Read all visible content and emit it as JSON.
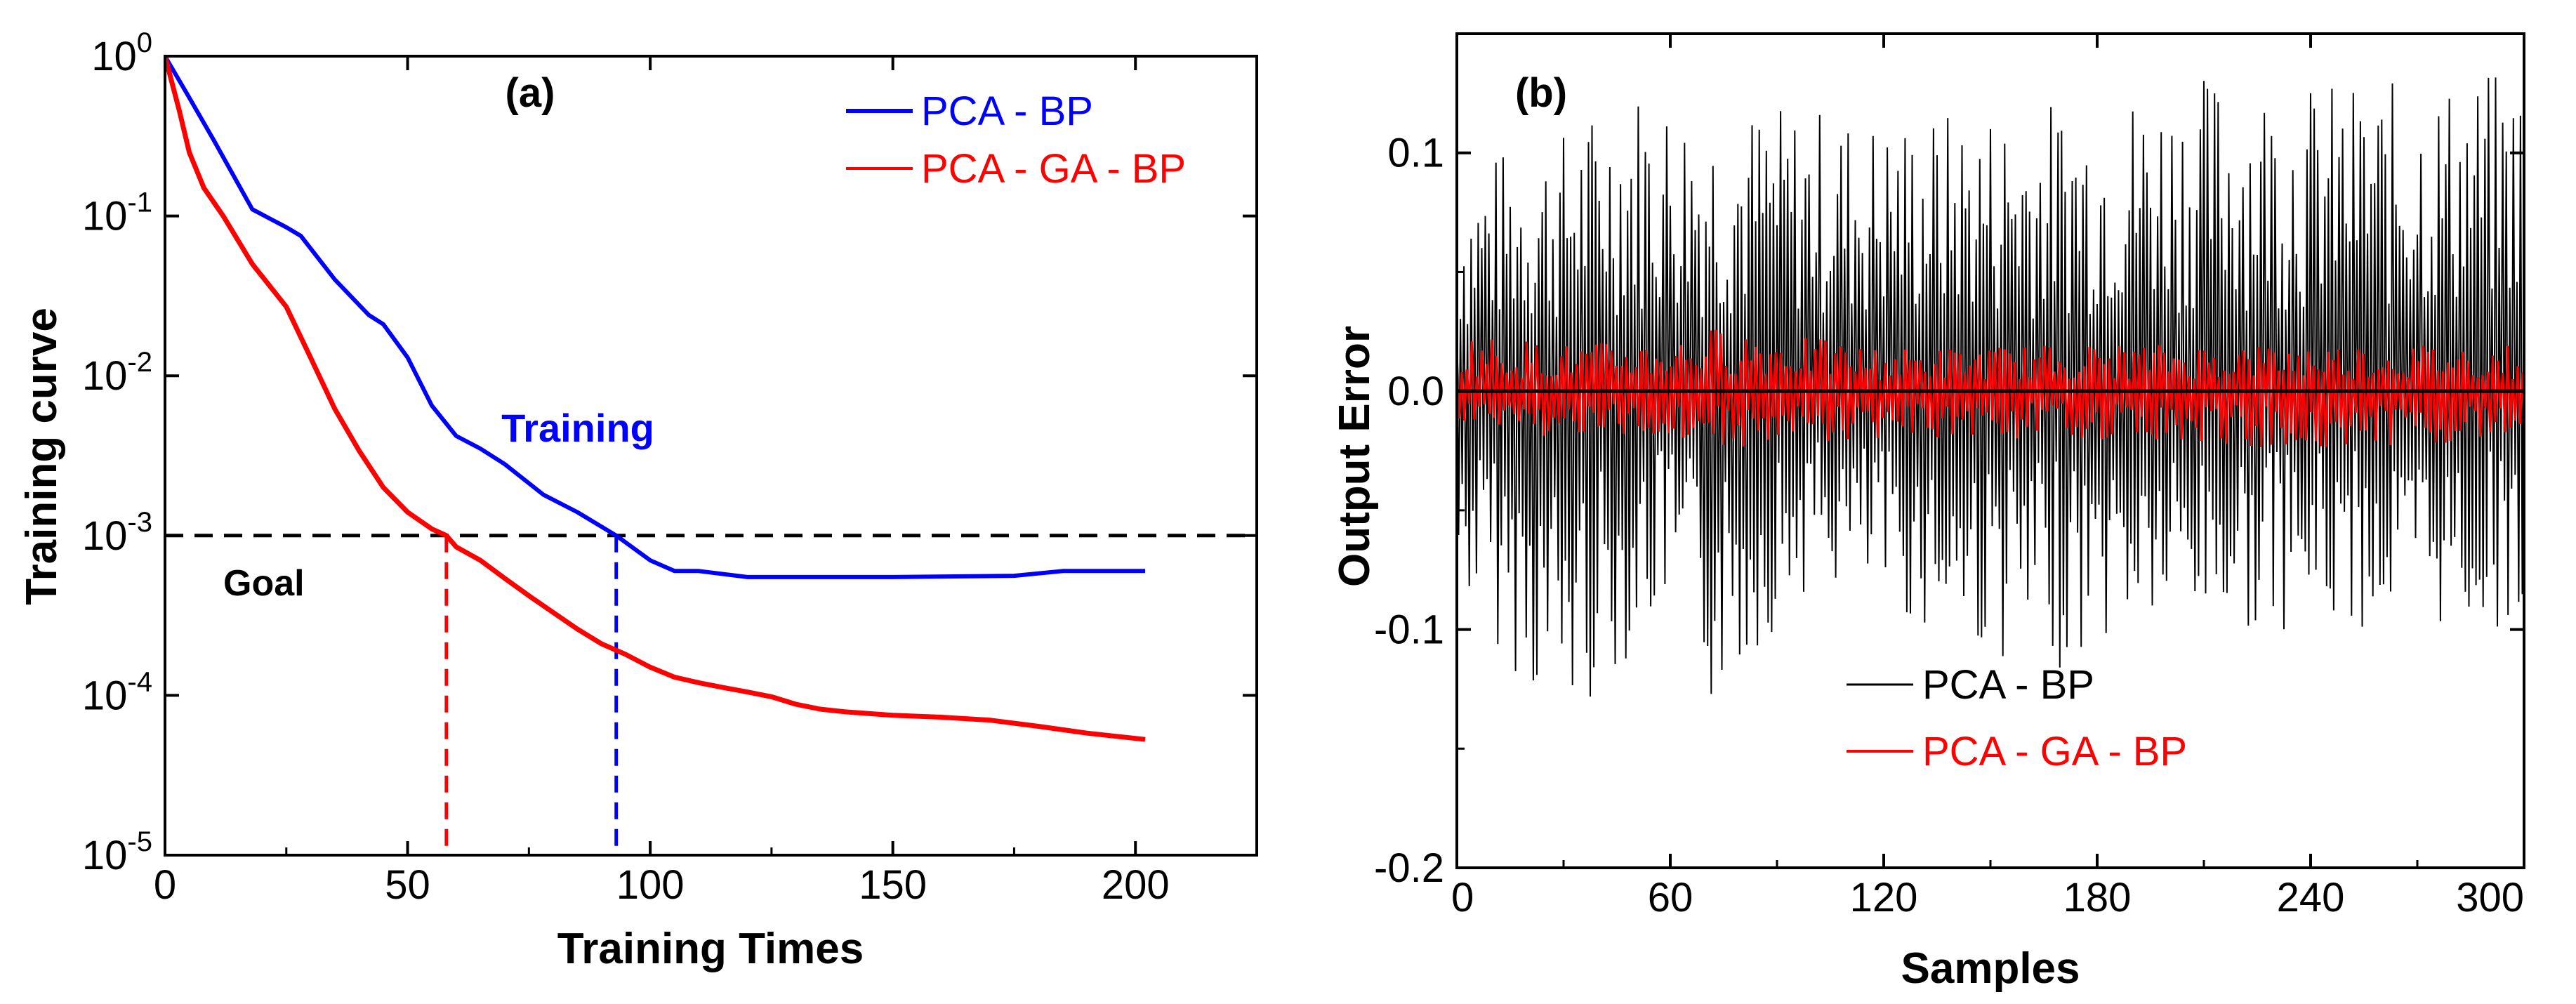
{
  "chart_data": [
    {
      "panel": "(a)",
      "type": "line",
      "xlabel": "Training Times",
      "ylabel": "Training curve",
      "xlim": [
        0,
        225
      ],
      "ylim": [
        1e-05,
        1
      ],
      "yscale": "log",
      "x_ticks": [
        0,
        50,
        100,
        150,
        200
      ],
      "x_tick_labels": [
        "0",
        "50",
        "100",
        "150",
        "200"
      ],
      "y_ticks": [
        1,
        0.1,
        0.01,
        0.001,
        0.0001,
        1e-05
      ],
      "y_tick_labels": [
        {
          "base": "10",
          "exp": "0"
        },
        {
          "base": "10",
          "exp": "-1"
        },
        {
          "base": "10",
          "exp": "-2"
        },
        {
          "base": "10",
          "exp": "-3"
        },
        {
          "base": "10",
          "exp": "-4"
        },
        {
          "base": "10",
          "exp": "-5"
        }
      ],
      "legend_position": "top-right",
      "series": [
        {
          "name": "PCA - BP",
          "color": "#0000ff",
          "x": [
            0,
            5,
            10,
            18,
            25,
            28,
            35,
            42,
            45,
            50,
            55,
            60,
            65,
            70,
            78,
            85,
            93,
            100,
            105,
            110,
            120,
            130,
            150,
            175,
            185,
            202
          ],
          "y": [
            1.0,
            0.55,
            0.3,
            0.11,
            0.085,
            0.075,
            0.04,
            0.024,
            0.021,
            0.013,
            0.0065,
            0.0042,
            0.0035,
            0.0028,
            0.0018,
            0.0014,
            0.001,
            0.0007,
            0.0006,
            0.0006,
            0.00055,
            0.00055,
            0.00055,
            0.00056,
            0.0006,
            0.0006
          ]
        },
        {
          "name": "PCA - GA - BP",
          "color": "#ff0000",
          "x": [
            0,
            3,
            5,
            8,
            12,
            18,
            25,
            30,
            35,
            40,
            45,
            50,
            55,
            58,
            60,
            65,
            70,
            75,
            80,
            85,
            90,
            95,
            100,
            105,
            110,
            115,
            120,
            125,
            130,
            135,
            140,
            150,
            160,
            170,
            180,
            190,
            202
          ],
          "y": [
            1.0,
            0.45,
            0.25,
            0.15,
            0.1,
            0.05,
            0.027,
            0.013,
            0.0062,
            0.0034,
            0.002,
            0.0014,
            0.0011,
            0.001,
            0.00085,
            0.0007,
            0.00054,
            0.00042,
            0.00033,
            0.00026,
            0.00021,
            0.00018,
            0.00015,
            0.00013,
            0.00012,
            0.000112,
            0.000105,
            9.8e-05,
            8.8e-05,
            8.2e-05,
            7.9e-05,
            7.5e-05,
            7.3e-05,
            7e-05,
            6.4e-05,
            5.8e-05,
            5.3e-05
          ]
        }
      ],
      "goal": {
        "value": 0.001,
        "label": "Goal",
        "color": "#000000"
      },
      "markers": [
        {
          "x": 58,
          "color": "#ff0000"
        },
        {
          "x": 93,
          "color": "#0000ff"
        }
      ],
      "annotations": [
        {
          "text": "Training",
          "x": 78,
          "y": 0.0035,
          "color": "#0000ff"
        }
      ]
    },
    {
      "panel": "(b)",
      "type": "line",
      "xlabel": "Samples",
      "ylabel": "Output Error",
      "xlim": [
        0,
        300
      ],
      "ylim": [
        -0.2,
        0.15
      ],
      "x_ticks": [
        0,
        60,
        120,
        180,
        240,
        300
      ],
      "x_tick_labels": [
        "0",
        "60",
        "120",
        "180",
        "240",
        "300"
      ],
      "y_ticks": [
        0.1,
        0.0,
        -0.1,
        -0.2
      ],
      "y_tick_labels": [
        "0.1",
        "0.0",
        "-0.1",
        "-0.2"
      ],
      "legend_position": "bottom-center",
      "zero_line": true,
      "series": [
        {
          "name": "PCA - BP",
          "color": "#000000",
          "kind": "dense-oscillation",
          "x_range": [
            0,
            300
          ],
          "upper_peaks": [
            [
              2,
              0.09
            ],
            [
              10,
              0.1
            ],
            [
              30,
              0.11
            ],
            [
              50,
              0.13
            ],
            [
              72,
              0.12
            ],
            [
              100,
              0.12
            ],
            [
              120,
              0.115
            ],
            [
              150,
              0.12
            ],
            [
              180,
              0.125
            ],
            [
              215,
              0.135
            ],
            [
              240,
              0.13
            ],
            [
              270,
              0.13
            ],
            [
              298,
              0.135
            ]
          ],
          "lower_peaks": [
            [
              5,
              -0.09
            ],
            [
              12,
              -0.11
            ],
            [
              30,
              -0.145
            ],
            [
              60,
              -0.09
            ],
            [
              71,
              -0.135
            ],
            [
              100,
              -0.08
            ],
            [
              140,
              -0.105
            ],
            [
              165,
              -0.12
            ],
            [
              190,
              -0.1
            ],
            [
              220,
              -0.1
            ],
            [
              260,
              -0.1
            ],
            [
              290,
              -0.1
            ]
          ]
        },
        {
          "name": "PCA - GA - BP",
          "color": "#ff0000",
          "kind": "dense-oscillation",
          "x_range": [
            0,
            300
          ],
          "upper_peaks": [
            [
              0,
              0.025
            ],
            [
              30,
              0.02
            ],
            [
              60,
              0.022
            ],
            [
              75,
              0.028
            ],
            [
              120,
              0.018
            ],
            [
              180,
              0.02
            ],
            [
              240,
              0.02
            ],
            [
              300,
              0.02
            ]
          ],
          "lower_peaks": [
            [
              0,
              -0.015
            ],
            [
              30,
              -0.02
            ],
            [
              60,
              -0.02
            ],
            [
              85,
              -0.025
            ],
            [
              120,
              -0.02
            ],
            [
              180,
              -0.02
            ],
            [
              240,
              -0.025
            ],
            [
              300,
              -0.02
            ]
          ]
        }
      ]
    }
  ]
}
